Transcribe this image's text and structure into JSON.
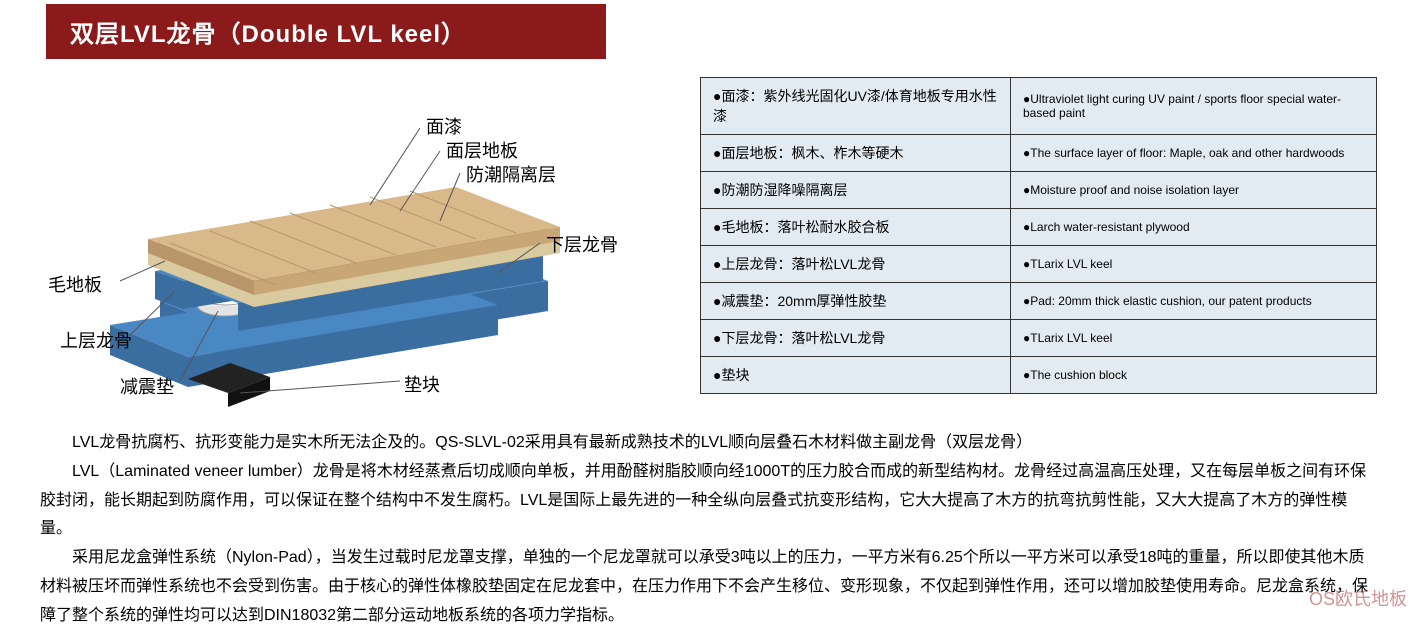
{
  "title": "双层LVL龙骨（Double LVL keel）",
  "callouts": {
    "top1": "面漆",
    "top2": "面层地板",
    "top3": "防潮隔离层",
    "right1": "下层龙骨",
    "left1": "毛地板",
    "bl1": "上层龙骨",
    "bl2": "减震垫",
    "br1": "垫块"
  },
  "diagram": {
    "colors": {
      "wood_top": "#d9b98a",
      "wood_side": "#c8a676",
      "thin_dark": "#2b2b2b",
      "beige": "#f2e6c8",
      "blue_face": "#4a88c4",
      "blue_side": "#3b6ea0",
      "grey_pad": "#e3e3e3",
      "black_pad": "#222"
    }
  },
  "table": {
    "rows": [
      {
        "zh": "●面漆：紫外线光固化UV漆/体育地板专用水性漆",
        "en": "●Ultraviolet light curing UV paint / sports floor special water-based paint"
      },
      {
        "zh": "●面层地板：枫木、柞木等硬木",
        "en": "●The surface layer of floor: Maple, oak and other hardwoods"
      },
      {
        "zh": "●防潮防湿降噪隔离层",
        "en": "●Moisture proof and noise isolation layer"
      },
      {
        "zh": "●毛地板：落叶松耐水胶合板",
        "en": "●Larch water-resistant plywood"
      },
      {
        "zh": "●上层龙骨：落叶松LVL龙骨",
        "en": "●TLarix LVL keel"
      },
      {
        "zh": "●减震垫：20mm厚弹性胶垫",
        "en": "●Pad: 20mm thick elastic cushion, our patent products"
      },
      {
        "zh": "●下层龙骨：落叶松LVL龙骨",
        "en": "●TLarix LVL keel"
      },
      {
        "zh": "●垫块",
        "en": "●The cushion block"
      }
    ]
  },
  "paragraphs": {
    "p1": "LVL龙骨抗腐朽、抗形变能力是实木所无法企及的。QS-SLVL-02采用具有最新成熟技术的LVL顺向层叠石木材料做主副龙骨（双层龙骨）",
    "p2": "LVL（Laminated veneer lumber）龙骨是将木材经蒸煮后切成顺向单板，并用酚醛树脂胶顺向经1000T的压力胶合而成的新型结构材。龙骨经过高温高压处理，又在每层单板之间有环保胶封闭，能长期起到防腐作用，可以保证在整个结构中不发生腐朽。LVL是国际上最先进的一种全纵向层叠式抗变形结构，它大大提高了木方的抗弯抗剪性能，又大大提高了木方的弹性模量。",
    "p3": "采用尼龙盒弹性系统（Nylon-Pad），当发生过载时尼龙罩支撑，单独的一个尼龙罩就可以承受3吨以上的压力，一平方米有6.25个所以一平方米可以承受18吨的重量，所以即使其他木质材料被压坏而弹性系统也不会受到伤害。由于核心的弹性体橡胶垫固定在尼龙套中，在压力作用下不会产生移位、变形现象，不仅起到弹性作用，还可以增加胶垫使用寿命。尼龙盒系统，保障了整个系统的弹性均可以达到DIN18032第二部分运动地板系统的各项力学指标。"
  },
  "watermark": "OS欧氏地板"
}
